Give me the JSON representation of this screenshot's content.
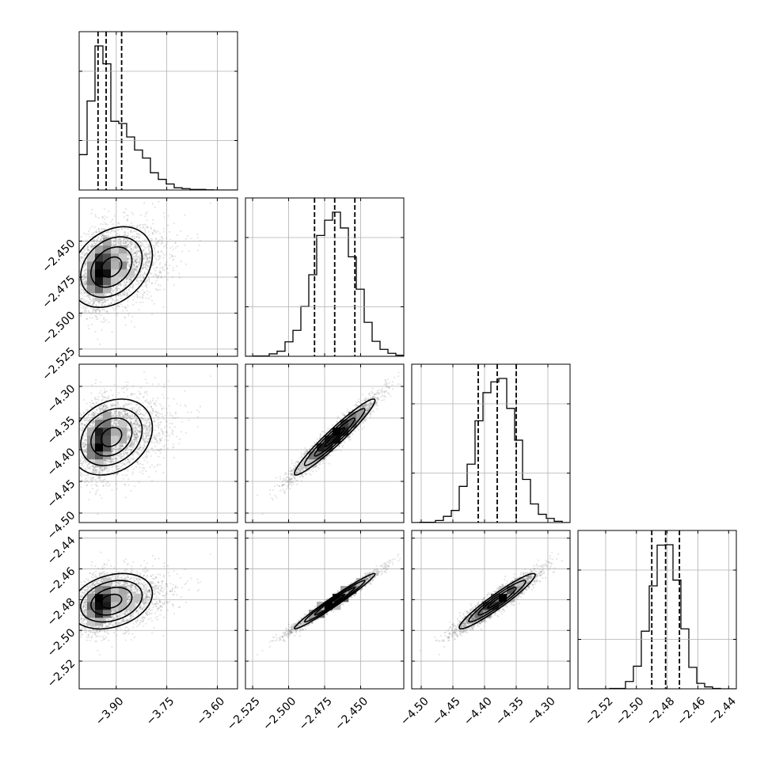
{
  "chart_data": {
    "type": "corner",
    "parameters": [
      {
        "range": [
          -4.01,
          -3.54
        ],
        "ticks": [
          -3.9,
          -3.75,
          -3.6
        ],
        "tick_labels": [
          "−3.90",
          "−3.75",
          "−3.60"
        ],
        "quantiles": [
          -3.954,
          -3.93,
          -3.884
        ],
        "median": -3.93,
        "sigma": 0.045,
        "skew": 1
      },
      {
        "range": [
          -2.53,
          -2.42
        ],
        "ticks": [
          -2.525,
          -2.5,
          -2.475,
          -2.45
        ],
        "tick_labels": [
          "−2.525",
          "−2.500",
          "−2.475",
          "−2.450"
        ],
        "quantiles": [
          -2.482,
          -2.468,
          -2.454
        ],
        "median": -2.468,
        "sigma": 0.014,
        "skew": 0
      },
      {
        "range": [
          -4.515,
          -4.265
        ],
        "ticks": [
          -4.5,
          -4.45,
          -4.4,
          -4.35,
          -4.3
        ],
        "tick_labels": [
          "−4.50",
          "−4.45",
          "−4.40",
          "−4.35",
          "−4.30"
        ],
        "quantiles": [
          -4.41,
          -4.38,
          -4.35
        ],
        "median": -4.38,
        "sigma": 0.03,
        "skew": 0
      },
      {
        "range": [
          -2.538,
          -2.435
        ],
        "ticks": [
          -2.52,
          -2.5,
          -2.48,
          -2.46,
          -2.44
        ],
        "tick_labels": [
          "−2.52",
          "−2.50",
          "−2.48",
          "−2.46",
          "−2.44"
        ],
        "quantiles": [
          -2.49,
          -2.481,
          -2.472
        ],
        "median": -2.481,
        "sigma": 0.009,
        "skew": 0
      }
    ],
    "correlations": [
      [
        1,
        0.3,
        0.25,
        0.28
      ],
      [
        0.3,
        1,
        0.96,
        0.98
      ],
      [
        0.25,
        0.96,
        1,
        0.95
      ],
      [
        0.28,
        0.98,
        0.95,
        1
      ]
    ],
    "grid": true,
    "panels_shown": "lower-triangle"
  }
}
